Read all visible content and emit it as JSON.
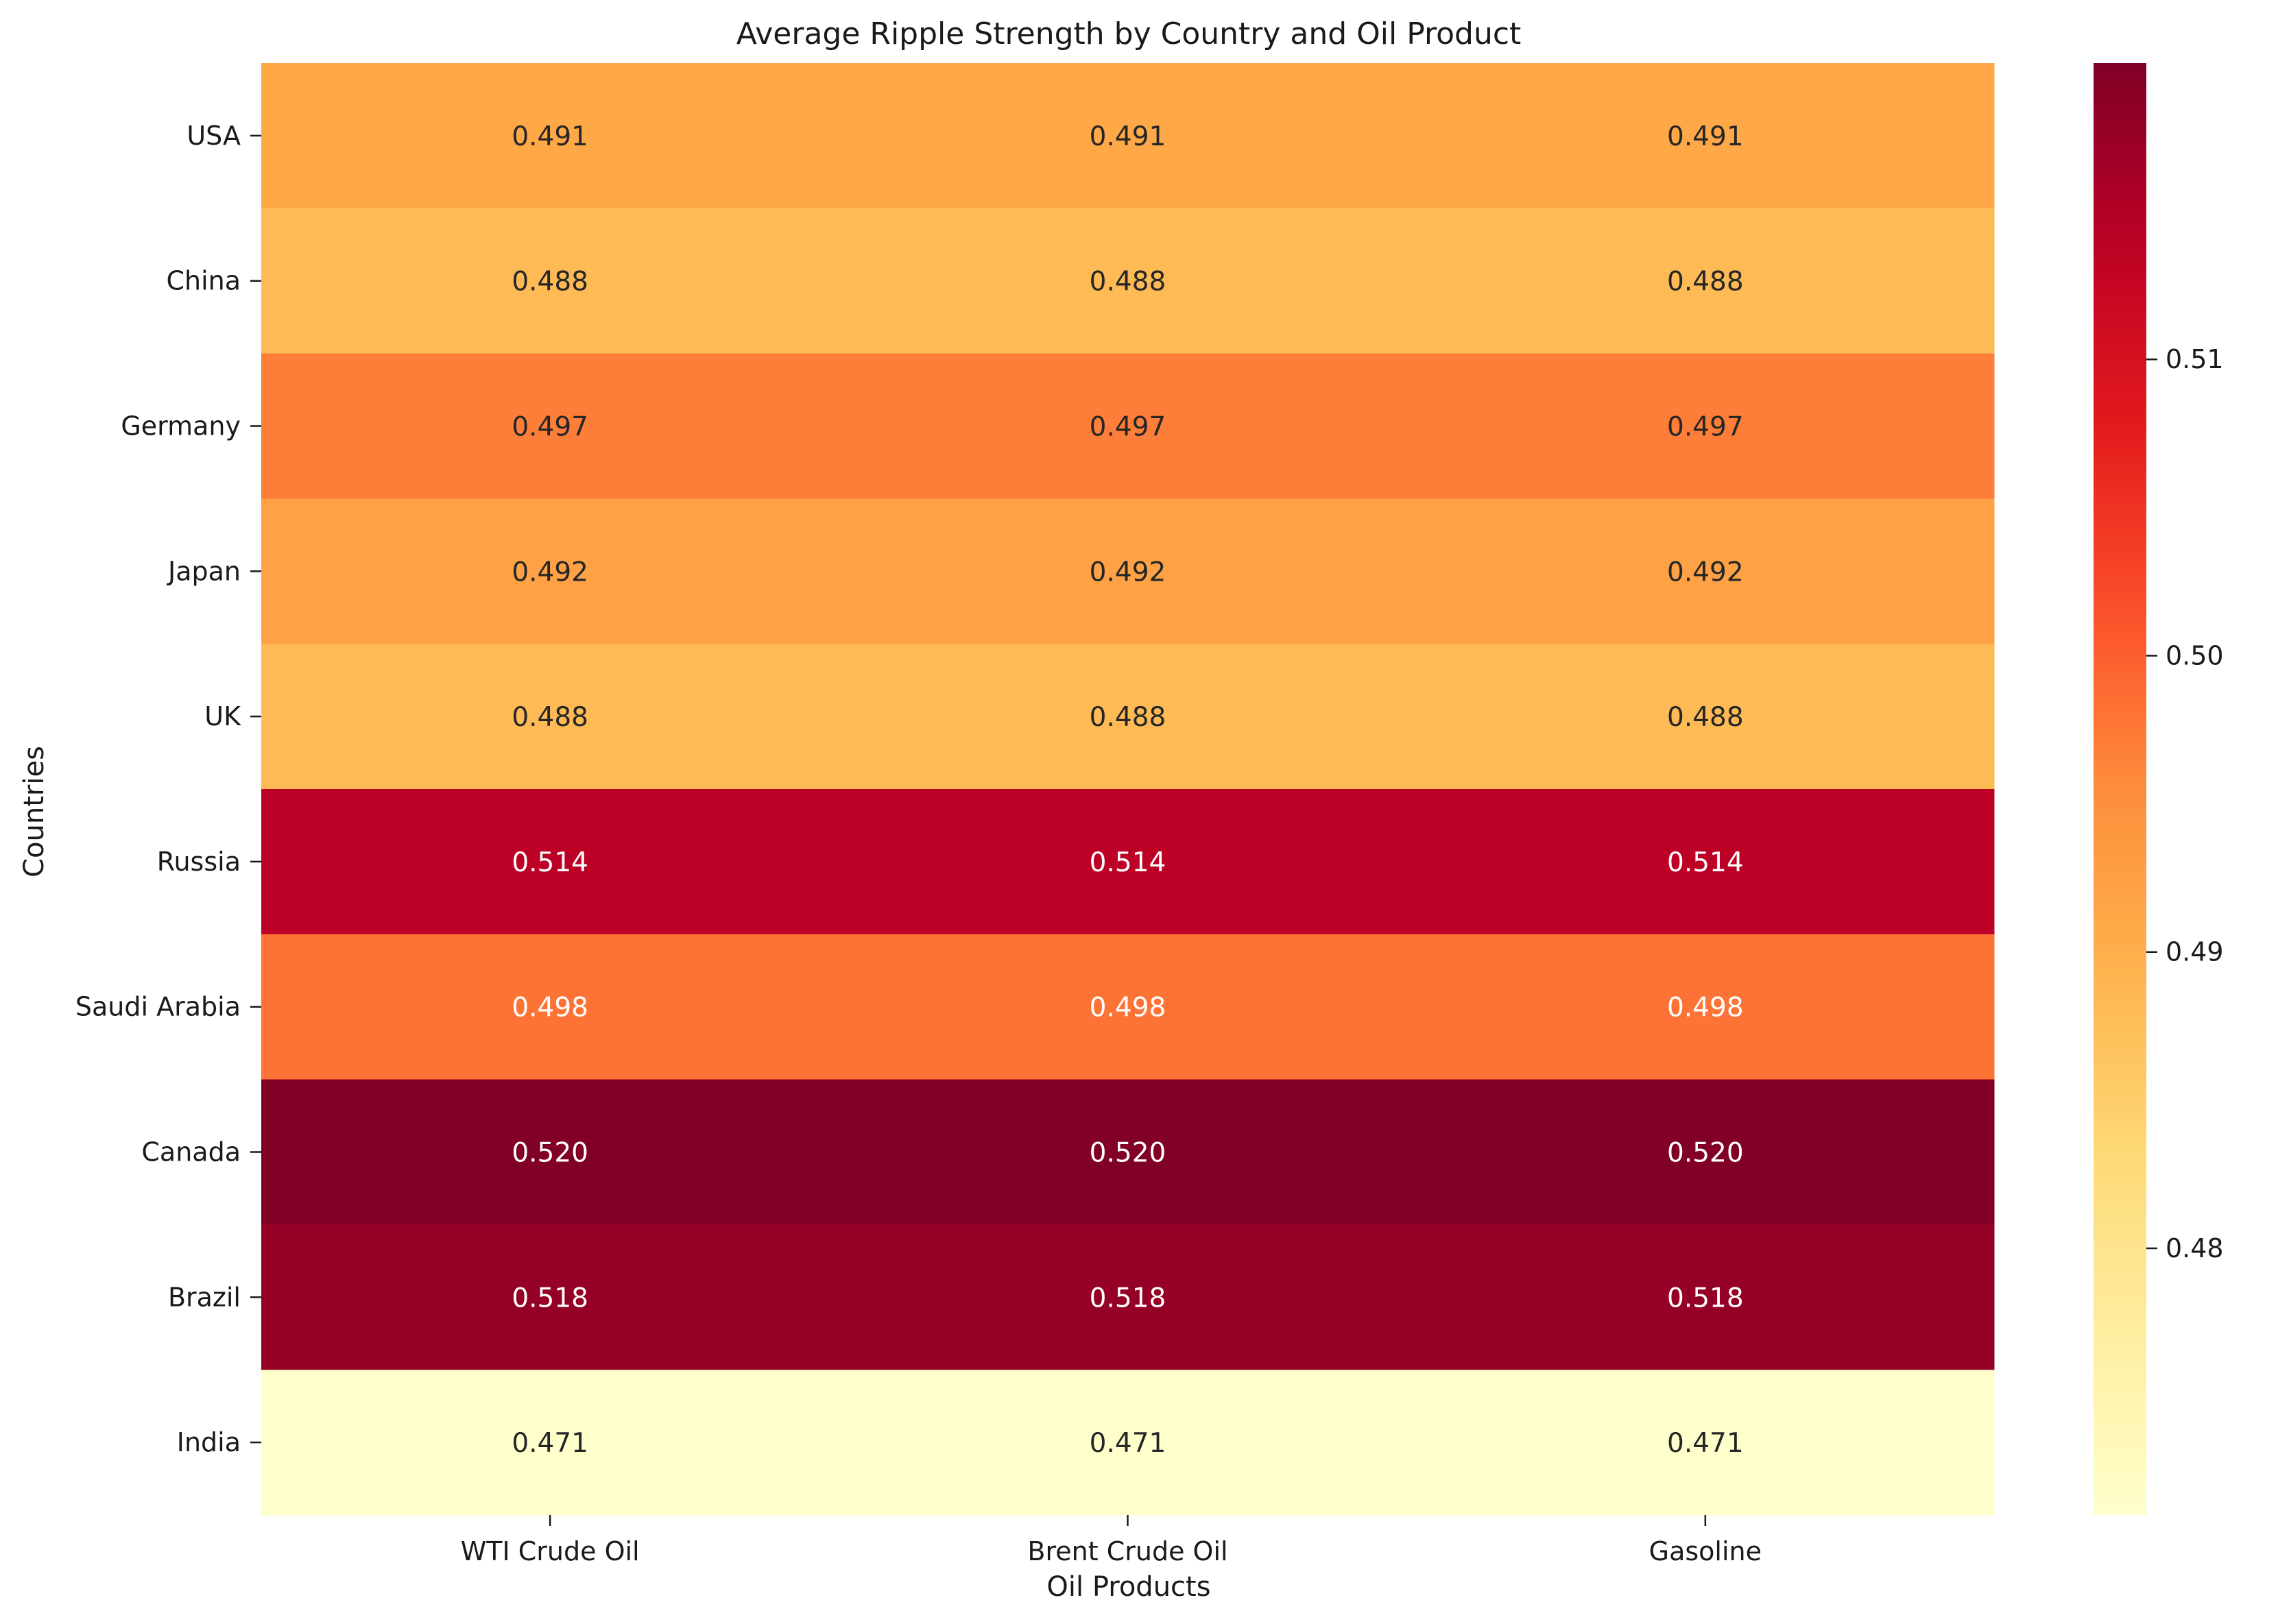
{
  "chart_data": {
    "type": "heatmap",
    "title": "Average Ripple Strength by Country and Oil Product",
    "xlabel": "Oil Products",
    "ylabel": "Countries",
    "x_categories": [
      "WTI Crude Oil",
      "Brent Crude Oil",
      "Gasoline"
    ],
    "y_categories": [
      "USA",
      "China",
      "Germany",
      "Japan",
      "UK",
      "Russia",
      "Saudi Arabia",
      "Canada",
      "Brazil",
      "India"
    ],
    "values": [
      [
        0.491,
        0.491,
        0.491
      ],
      [
        0.488,
        0.488,
        0.488
      ],
      [
        0.497,
        0.497,
        0.497
      ],
      [
        0.492,
        0.492,
        0.492
      ],
      [
        0.488,
        0.488,
        0.488
      ],
      [
        0.514,
        0.514,
        0.514
      ],
      [
        0.498,
        0.498,
        0.498
      ],
      [
        0.52,
        0.52,
        0.52
      ],
      [
        0.518,
        0.518,
        0.518
      ],
      [
        0.471,
        0.471,
        0.471
      ]
    ],
    "value_format": "3 decimals",
    "colormap": "YlOrRd",
    "color_range": [
      0.471,
      0.52
    ],
    "colorbar_ticks": [
      0.48,
      0.49,
      0.5,
      0.51
    ],
    "colorbar_tick_labels": [
      "0.48",
      "0.49",
      "0.50",
      "0.51"
    ],
    "grid": false
  }
}
